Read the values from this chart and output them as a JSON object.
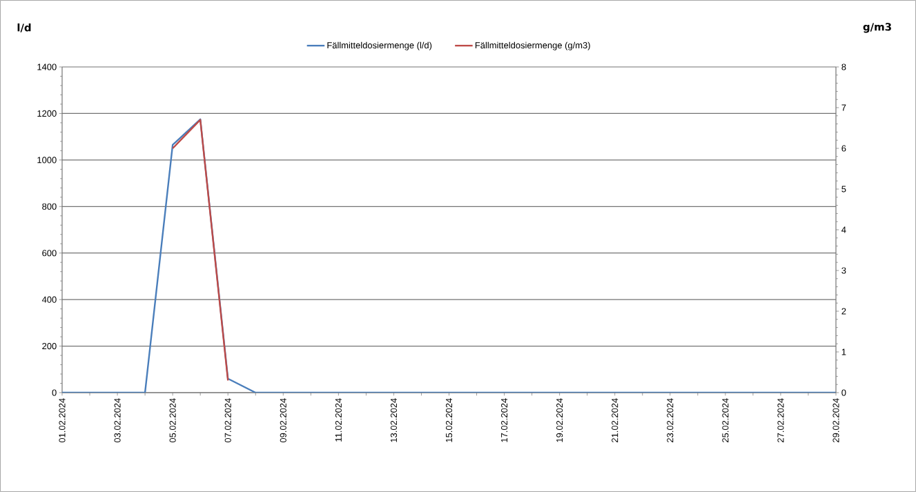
{
  "chart_data": {
    "type": "line",
    "ylabel": "l/d",
    "y2label": "g/m3",
    "categories": [
      "01.02.2024",
      null,
      "03.02.2024",
      null,
      "05.02.2024",
      null,
      "07.02.2024",
      null,
      "09.02.2024",
      null,
      "11.02.2024",
      null,
      "13.02.2024",
      null,
      "15.02.2024",
      null,
      "17.02.2024",
      null,
      "19.02.2024",
      null,
      "21.02.2024",
      null,
      "23.02.2024",
      null,
      "25.02.2024",
      null,
      "27.02.2024",
      null,
      "29.02.2024"
    ],
    "series": [
      {
        "name": "Fällmitteldosiermenge (l/d)",
        "color": "#4a7ebb",
        "values": [
          0,
          0,
          0,
          0,
          1065,
          1175,
          60,
          0,
          0,
          0,
          0,
          0,
          0,
          0,
          0,
          0,
          0,
          0,
          0,
          0,
          0,
          0,
          0,
          0,
          0,
          0,
          0,
          0,
          0
        ]
      },
      {
        "name": "Fällmitteldosiermenge (g/m3)",
        "color": "#be4b48",
        "axis": "y2",
        "values": [
          null,
          null,
          null,
          null,
          6.0,
          6.7,
          0.3,
          null,
          null,
          null,
          null,
          null,
          null,
          null,
          null,
          null,
          null,
          null,
          null,
          null,
          null,
          null,
          null,
          null,
          null,
          null,
          null,
          null,
          null
        ]
      }
    ],
    "ylim": [
      0,
      1400
    ],
    "yticks": [
      0,
      200,
      400,
      600,
      800,
      1000,
      1200,
      1400
    ],
    "y2lim": [
      0,
      8
    ],
    "y2ticks": [
      0,
      1,
      2,
      3,
      4,
      5,
      6,
      7,
      8
    ],
    "grid": "y",
    "legend": "top",
    "marker": "none",
    "line_style": "solid"
  }
}
